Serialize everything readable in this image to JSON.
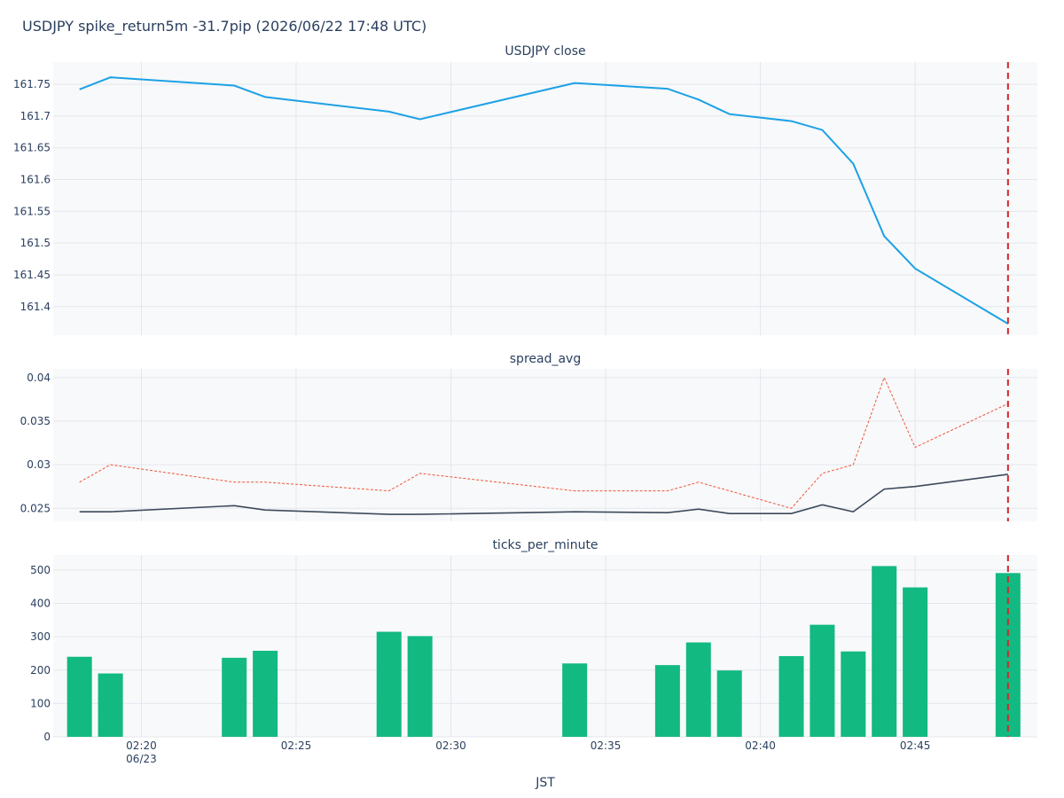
{
  "figure": {
    "title": "USDJPY spike_return5m -31.7pip (2026/06/22 17:48 UTC)",
    "xlabel": "JST",
    "x_tick_labels": [
      "02:20",
      "02:25",
      "02:30",
      "02:35",
      "02:40",
      "02:45"
    ],
    "x_tick_sublabel": "06/23",
    "colors": {
      "plot_bg": "#f8f9fa",
      "grid": "#e3e7ee",
      "close_line": "#1da1e6",
      "spread_dotted": "#ef553b",
      "spread_solid": "#3d4a5c",
      "ticks_bar": "#12b981",
      "spike_marker": "#d62728"
    }
  },
  "chart_data": [
    {
      "type": "line",
      "title": "USDJPY close",
      "y_tick_labels": [
        "161.4",
        "161.45",
        "161.5",
        "161.55",
        "161.6",
        "161.65",
        "161.7",
        "161.75"
      ],
      "ylim": [
        161.355,
        161.785
      ],
      "series": [
        {
          "x": [
            "02:18",
            "02:19",
            "02:23",
            "02:24",
            "02:28",
            "02:29",
            "02:34",
            "02:37",
            "02:38",
            "02:39",
            "02:41",
            "02:42",
            "02:43",
            "02:44",
            "02:45",
            "02:48"
          ],
          "values": [
            161.742,
            161.761,
            161.748,
            161.73,
            161.707,
            161.695,
            161.752,
            161.743,
            161.726,
            161.703,
            161.692,
            161.678,
            161.625,
            161.511,
            161.46,
            161.373
          ]
        }
      ],
      "spike_time": "02:48"
    },
    {
      "type": "line",
      "title": "spread_avg",
      "y_tick_labels": [
        "0.025",
        "0.03",
        "0.035",
        "0.04"
      ],
      "ylim": [
        0.0235,
        0.041
      ],
      "series": [
        {
          "x": [
            "02:18",
            "02:19",
            "02:23",
            "02:24",
            "02:28",
            "02:29",
            "02:34",
            "02:37",
            "02:38",
            "02:39",
            "02:41",
            "02:42",
            "02:43",
            "02:44",
            "02:45",
            "02:48"
          ],
          "values": [
            0.028,
            0.03,
            0.028,
            0.028,
            0.027,
            0.029,
            0.027,
            0.027,
            0.028,
            0.027,
            0.025,
            0.029,
            0.03,
            0.04,
            0.032,
            0.037
          ],
          "style": "dotted"
        },
        {
          "x": [
            "02:18",
            "02:19",
            "02:23",
            "02:24",
            "02:28",
            "02:29",
            "02:34",
            "02:37",
            "02:38",
            "02:39",
            "02:41",
            "02:42",
            "02:43",
            "02:44",
            "02:45",
            "02:48"
          ],
          "values": [
            0.0246,
            0.0246,
            0.0253,
            0.0248,
            0.0243,
            0.0243,
            0.0246,
            0.0245,
            0.0249,
            0.0244,
            0.0244,
            0.0254,
            0.0246,
            0.0272,
            0.0275,
            0.0289
          ],
          "style": "solid"
        }
      ],
      "spike_time": "02:48"
    },
    {
      "type": "bar",
      "title": "ticks_per_minute",
      "y_tick_labels": [
        "0",
        "100",
        "200",
        "300",
        "400",
        "500"
      ],
      "ylim": [
        0,
        545
      ],
      "categories": [
        "02:18",
        "02:19",
        "02:23",
        "02:24",
        "02:28",
        "02:29",
        "02:34",
        "02:37",
        "02:38",
        "02:39",
        "02:41",
        "02:42",
        "02:43",
        "02:44",
        "02:45",
        "02:48"
      ],
      "values": [
        240,
        190,
        237,
        258,
        315,
        302,
        220,
        215,
        283,
        199,
        242,
        336,
        256,
        512,
        448,
        491
      ],
      "spike_time": "02:48"
    }
  ]
}
